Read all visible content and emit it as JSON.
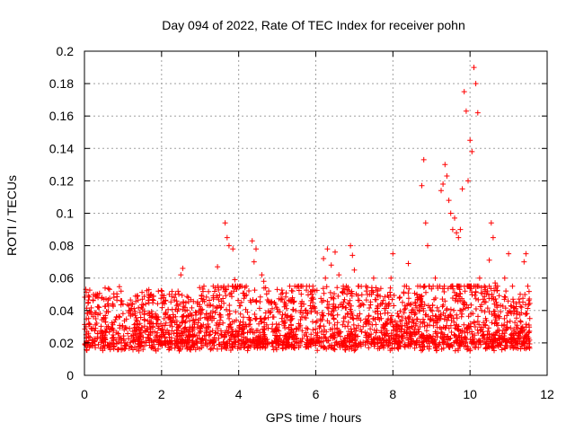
{
  "chart_data": {
    "type": "scatter",
    "title": "Day 094 of 2022, Rate Of TEC Index for receiver pohn",
    "xlabel": "GPS time / hours",
    "ylabel": "ROTI / TECUs",
    "xlim": [
      0,
      12
    ],
    "ylim": [
      0,
      0.2
    ],
    "xticks": [
      "0",
      "2",
      "4",
      "6",
      "8",
      "10",
      "12"
    ],
    "yticks": [
      "0",
      "0.02",
      "0.04",
      "0.06",
      "0.08",
      "0.1",
      "0.12",
      "0.14",
      "0.16",
      "0.18",
      "0.2"
    ],
    "grid": true,
    "marker": "+",
    "color": "#ff0000",
    "series": [
      {
        "name": "ROTI",
        "points": [
          [
            0.1,
            0.045
          ],
          [
            0.3,
            0.05
          ],
          [
            0.5,
            0.035
          ],
          [
            0.65,
            0.053
          ],
          [
            1.0,
            0.044
          ],
          [
            1.5,
            0.047
          ],
          [
            2.1,
            0.046
          ],
          [
            2.2,
            0.05
          ],
          [
            2.5,
            0.062
          ],
          [
            2.55,
            0.066
          ],
          [
            3.1,
            0.055
          ],
          [
            3.4,
            0.054
          ],
          [
            3.45,
            0.067
          ],
          [
            3.65,
            0.094
          ],
          [
            3.7,
            0.085
          ],
          [
            3.75,
            0.08
          ],
          [
            3.85,
            0.078
          ],
          [
            3.9,
            0.059
          ],
          [
            4.35,
            0.083
          ],
          [
            4.4,
            0.07
          ],
          [
            4.45,
            0.078
          ],
          [
            4.6,
            0.062
          ],
          [
            4.65,
            0.058
          ],
          [
            4.7,
            0.054
          ],
          [
            5.1,
            0.05
          ],
          [
            5.4,
            0.052
          ],
          [
            5.9,
            0.05
          ],
          [
            6.2,
            0.072
          ],
          [
            6.25,
            0.06
          ],
          [
            6.3,
            0.078
          ],
          [
            6.4,
            0.068
          ],
          [
            6.5,
            0.076
          ],
          [
            6.6,
            0.062
          ],
          [
            6.9,
            0.08
          ],
          [
            6.95,
            0.074
          ],
          [
            7.0,
            0.065
          ],
          [
            7.1,
            0.055
          ],
          [
            7.4,
            0.05
          ],
          [
            7.5,
            0.06
          ],
          [
            7.6,
            0.052
          ],
          [
            7.95,
            0.06
          ],
          [
            8.0,
            0.075
          ],
          [
            8.3,
            0.055
          ],
          [
            8.4,
            0.069
          ],
          [
            8.75,
            0.117
          ],
          [
            8.8,
            0.133
          ],
          [
            8.85,
            0.094
          ],
          [
            8.9,
            0.08
          ],
          [
            9.1,
            0.06
          ],
          [
            9.25,
            0.114
          ],
          [
            9.3,
            0.118
          ],
          [
            9.35,
            0.13
          ],
          [
            9.4,
            0.123
          ],
          [
            9.45,
            0.108
          ],
          [
            9.5,
            0.1
          ],
          [
            9.55,
            0.09
          ],
          [
            9.6,
            0.097
          ],
          [
            9.65,
            0.088
          ],
          [
            9.7,
            0.085
          ],
          [
            9.75,
            0.09
          ],
          [
            9.8,
            0.115
          ],
          [
            9.85,
            0.175
          ],
          [
            9.9,
            0.163
          ],
          [
            9.95,
            0.12
          ],
          [
            10.0,
            0.145
          ],
          [
            10.05,
            0.138
          ],
          [
            10.1,
            0.19
          ],
          [
            10.15,
            0.18
          ],
          [
            10.2,
            0.162
          ],
          [
            10.25,
            0.06
          ],
          [
            10.3,
            0.04
          ],
          [
            10.45,
            0.052
          ],
          [
            10.5,
            0.071
          ],
          [
            10.55,
            0.094
          ],
          [
            10.6,
            0.085
          ],
          [
            10.65,
            0.057
          ],
          [
            10.7,
            0.042
          ],
          [
            10.9,
            0.06
          ],
          [
            11.0,
            0.075
          ],
          [
            11.1,
            0.055
          ],
          [
            11.3,
            0.05
          ],
          [
            11.4,
            0.07
          ],
          [
            11.45,
            0.075
          ],
          [
            11.5,
            0.055
          ],
          [
            11.55,
            0.035
          ]
        ]
      }
    ]
  }
}
